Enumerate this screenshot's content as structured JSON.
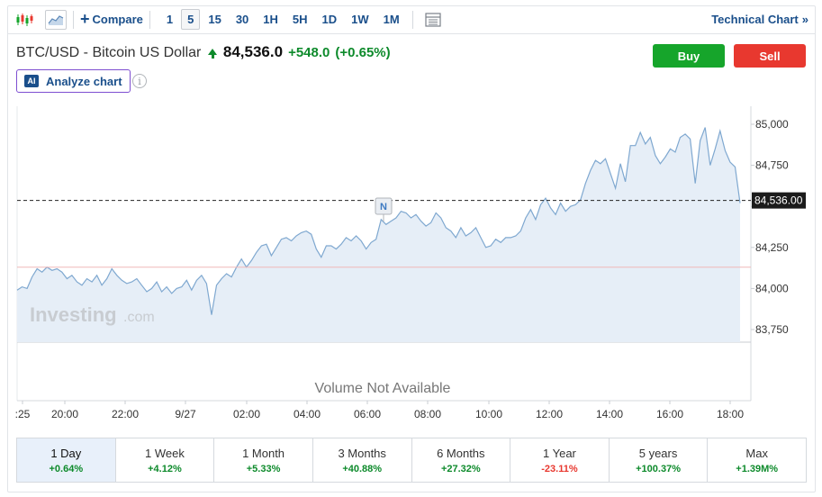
{
  "toolbar": {
    "compare_label": "Compare",
    "intervals": [
      "1",
      "5",
      "15",
      "30",
      "1H",
      "5H",
      "1D",
      "1W",
      "1M"
    ],
    "active_interval": "5",
    "technical_chart_label": "Technical Chart",
    "technical_chart_arrow": "»"
  },
  "instrument": {
    "name": "BTC/USD - Bitcoin US Dollar",
    "last": "84,536.0",
    "change": "+548.0",
    "change_pct": "(+0.65%)"
  },
  "actions": {
    "buy_label": "Buy",
    "sell_label": "Sell"
  },
  "analyze": {
    "badge": "AI",
    "label": "Analyze chart",
    "info_icon": "i"
  },
  "colors": {
    "accent": "#1a4f8b",
    "buy": "#16a52b",
    "sell": "#e8382f",
    "up": "#0d8a2b",
    "line": "#7fa8d0",
    "area": "#e6eef7"
  },
  "chart_data": {
    "type": "area",
    "x_tick_labels": [
      ":25",
      "20:00",
      "22:00",
      "9/27",
      "02:00",
      "04:00",
      "06:00",
      "08:00",
      "10:00",
      "12:00",
      "14:00",
      "16:00",
      "18:00"
    ],
    "y_tick_labels": [
      "85,000",
      "84,750",
      "84,500",
      "84,250",
      "84,000",
      "83,750"
    ],
    "ylim": [
      83700,
      85050
    ],
    "last_price_label": "84,536.00",
    "last_price": 84536,
    "reference_line": 84130,
    "marker_label": "N",
    "watermark": "Investing",
    "watermark_suffix": ".com",
    "volume_text": "Volume Not Available",
    "series": [
      {
        "values": [
          83990,
          84010,
          84000,
          84070,
          84120,
          84100,
          84130,
          84110,
          84120,
          84100,
          84060,
          84080,
          84040,
          84020,
          84060,
          84040,
          84080,
          84020,
          84060,
          84120,
          84080,
          84050,
          84030,
          84040,
          84060,
          84020,
          83980,
          84000,
          84040,
          83980,
          84010,
          83970,
          84000,
          84010,
          84050,
          83990,
          84050,
          84080,
          84030,
          83840,
          84020,
          84060,
          84090,
          84070,
          84130,
          84180,
          84130,
          84170,
          84220,
          84260,
          84270,
          84200,
          84250,
          84300,
          84310,
          84290,
          84320,
          84340,
          84350,
          84330,
          84240,
          84190,
          84260,
          84260,
          84240,
          84270,
          84310,
          84290,
          84320,
          84290,
          84240,
          84280,
          84300,
          84420,
          84390,
          84410,
          84430,
          84470,
          84460,
          84430,
          84450,
          84410,
          84380,
          84400,
          84460,
          84430,
          84370,
          84350,
          84310,
          84370,
          84320,
          84340,
          84370,
          84310,
          84250,
          84260,
          84300,
          84280,
          84310,
          84310,
          84320,
          84350,
          84430,
          84480,
          84420,
          84510,
          84550,
          84490,
          84450,
          84520,
          84470,
          84500,
          84510,
          84540,
          84640,
          84720,
          84780,
          84760,
          84790,
          84700,
          84610,
          84760,
          84650,
          84870,
          84870,
          84950,
          84880,
          84920,
          84810,
          84760,
          84800,
          84850,
          84830,
          84920,
          84940,
          84910,
          84640,
          84900,
          84980,
          84750,
          84850,
          84960,
          84840,
          84770,
          84740,
          84520
        ]
      }
    ]
  },
  "periods": [
    {
      "label": "1 Day",
      "value": "+0.64%"
    },
    {
      "label": "1 Week",
      "value": "+4.12%"
    },
    {
      "label": "1 Month",
      "value": "+5.33%"
    },
    {
      "label": "3 Months",
      "value": "+40.88%"
    },
    {
      "label": "6 Months",
      "value": "+27.32%"
    },
    {
      "label": "1 Year",
      "value": "-23.11%"
    },
    {
      "label": "5 years",
      "value": "+100.37%"
    },
    {
      "label": "Max",
      "value": "+1.39M%"
    }
  ],
  "active_period": "1 Day"
}
